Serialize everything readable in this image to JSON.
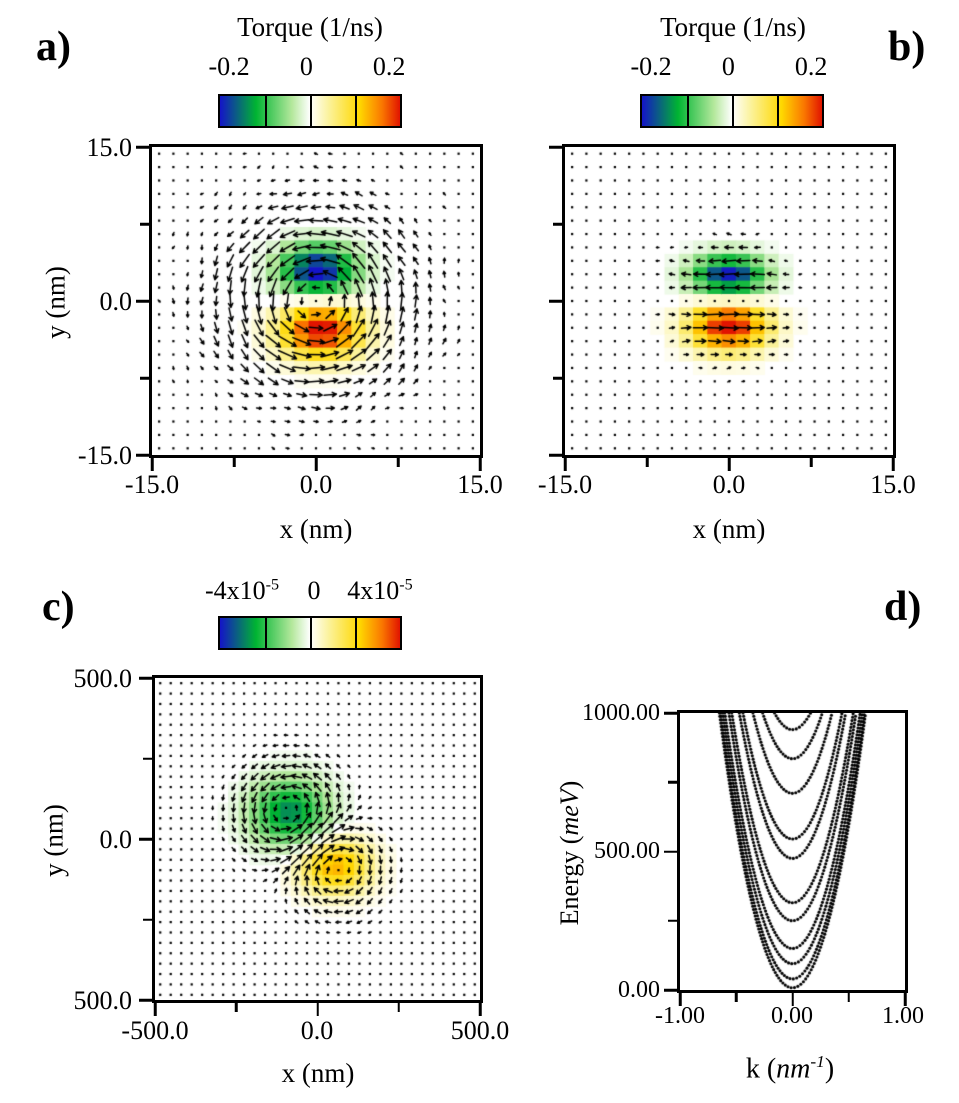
{
  "figure": {
    "background": "#ffffff"
  },
  "colors": {
    "axis": "#000000",
    "arrow": "#000000",
    "colormap_stops": [
      [
        -1.0,
        "#1414c8"
      ],
      [
        -0.6,
        "#00b432"
      ],
      [
        -0.2,
        "#b4e89c"
      ],
      [
        0.0,
        "#ffffff"
      ],
      [
        0.2,
        "#fbf3a0"
      ],
      [
        0.55,
        "#ffd800"
      ],
      [
        0.8,
        "#fa7800"
      ],
      [
        1.0,
        "#e11400"
      ]
    ]
  },
  "panels": {
    "a": {
      "label": "a)",
      "colorbar_title": "Torque (1/ns)",
      "colorbar_ticks": [
        "-0.2",
        "0",
        "0.2"
      ],
      "xlabel": "x (nm)",
      "ylabel": "y (nm)",
      "xticks": [
        "-15.0",
        "0.0",
        "15.0"
      ],
      "yticks": [
        "15.0",
        "0.0",
        "-15.0"
      ]
    },
    "b": {
      "label": "b)",
      "colorbar_title": "Torque (1/ns)",
      "colorbar_ticks": [
        "-0.2",
        "0",
        "0.2"
      ],
      "xlabel": "x (nm)",
      "xticks": [
        "-15.0",
        "0.0",
        "15.0"
      ]
    },
    "c": {
      "label": "c)",
      "colorbar_ticks": [
        {
          "base": "-4x10",
          "sup": "-5"
        },
        {
          "base": "0",
          "sup": ""
        },
        {
          "base": "4x10",
          "sup": "-5"
        }
      ],
      "xlabel": "x (nm)",
      "ylabel": "y (nm)",
      "xticks": [
        "-500.0",
        "0.0",
        "500.0"
      ],
      "yticks": [
        "500.0",
        "0.0",
        "500.0"
      ]
    },
    "d": {
      "label": "d)",
      "ylabel": {
        "pre": "Energy (",
        "unit": "meV",
        "post": ")"
      },
      "xlabel": {
        "pre": "k (",
        "unit": "nm",
        "sup": "-1",
        "post": ")"
      },
      "xticks": [
        "-1.00",
        "0.00",
        "1.00"
      ],
      "yticks": [
        "1000.00",
        "500.00",
        "0.00"
      ]
    }
  },
  "chart_data": [
    {
      "id": "a",
      "type": "quiver",
      "title": "Torque (1/ns)",
      "xlabel": "x (nm)",
      "ylabel": "y (nm)",
      "xlim": [
        -15,
        15
      ],
      "ylim": [
        -15,
        15
      ],
      "colorbar": {
        "min": -0.2,
        "max": 0.2,
        "ticks": [
          -0.2,
          0,
          0.2
        ]
      },
      "grid_n": 23,
      "color_blobs": [
        {
          "x": 0.2,
          "y": 2.9,
          "sx": 2.4,
          "sy": 1.7,
          "amp": -1.05
        },
        {
          "x": 0.5,
          "y": -2.9,
          "sx": 2.6,
          "sy": 1.9,
          "amp": 1.05
        }
      ],
      "vortices": [
        {
          "x": 0,
          "y": 0,
          "radius": 5.0,
          "strength": 1.9,
          "sense": 1,
          "decay": 0.5
        }
      ],
      "shears": [],
      "noise_amp": 0.12,
      "arrow_scale": 1.15,
      "description": "In-plane torque field (black arrows) circulating counterclockwise about the skyrmion core; out-of-plane torque as color: blue lobe (-0.2 1/ns) just above center, red/yellow lobe (+0.2 1/ns) just below center."
    },
    {
      "id": "b",
      "type": "quiver",
      "title": "Torque (1/ns)",
      "xlabel": "x (nm)",
      "xlim": [
        -15,
        15
      ],
      "ylim": [
        -15,
        15
      ],
      "colorbar": {
        "min": -0.2,
        "max": 0.2,
        "ticks": [
          -0.2,
          0,
          0.2
        ]
      },
      "grid_n": 23,
      "color_blobs": [
        {
          "x": 0,
          "y": 2.4,
          "sx": 2.3,
          "sy": 1.4,
          "amp": -1.0
        },
        {
          "x": 0,
          "y": -2.5,
          "sx": 2.5,
          "sy": 1.7,
          "amp": 1.05
        }
      ],
      "vortices": [],
      "shears": [
        {
          "x": 0,
          "y": 0,
          "radius": 4.6,
          "width": 1.3,
          "strength": 1.7
        }
      ],
      "noise_amp": 0.1,
      "arrow_scale": 1.1,
      "description": "Compact symmetric torque pattern: horizontal arrow rows (left-pointing above center, right-pointing below), blue lobe -0.2 above center, red lobe +0.2 below center; negligible torque elsewhere."
    },
    {
      "id": "c",
      "type": "quiver",
      "xlabel": "x (nm)",
      "ylabel": "y (nm)",
      "xlim": [
        -500,
        500
      ],
      "ylim": [
        -500,
        500
      ],
      "colorbar": {
        "min": -4e-05,
        "max": 4e-05,
        "ticks": [
          -4e-05,
          0,
          4e-05
        ]
      },
      "grid_n": 31,
      "color_blobs": [
        {
          "x": -85,
          "y": 80,
          "sx": 82,
          "sy": 72,
          "amp": -0.72
        },
        {
          "x": 55,
          "y": -85,
          "sx": 78,
          "sy": 60,
          "amp": 0.66
        }
      ],
      "vortices": [
        {
          "x": -85,
          "y": 80,
          "radius": 130,
          "strength": 1.7,
          "sense": 1,
          "decay": 0.8
        },
        {
          "x": 55,
          "y": -85,
          "radius": 120,
          "strength": 1.5,
          "sense": -1,
          "decay": 0.8
        }
      ],
      "shears": [],
      "noise_amp": 0.05,
      "arrow_scale": 1.3,
      "description": "Weak torque field (scale 4x10^-5 1/ns): green negative lobe above-left of center with counterclockwise swirl, yellow positive lobe below-right with clockwise swirl; tiny dot-like arrows elsewhere."
    },
    {
      "id": "d",
      "type": "scatter_bands",
      "xlabel": "k (nm^-1)",
      "ylabel": "Energy (meV)",
      "xlim": [
        -1,
        1
      ],
      "ylim": [
        0,
        1000
      ],
      "xticks": [
        -1.0,
        0.0,
        1.0
      ],
      "yticks": [
        0,
        500,
        1000
      ],
      "marker": "dot",
      "bands": {
        "curvature_meV_nm2": 2350,
        "minima_meV": [
          8,
          40,
          95,
          150,
          250,
          315,
          475,
          545,
          710,
          835,
          940
        ]
      },
      "description": "Dispersion of magnon/band states: nested upward parabolas E(k)=E0+2350 k^2 with minima at k=0 between ~0 and ~940 meV, clipped at 1000 meV; energies read from 0.00 to 1000.00 meV, k from -1.00 to 1.00 nm^-1."
    }
  ]
}
